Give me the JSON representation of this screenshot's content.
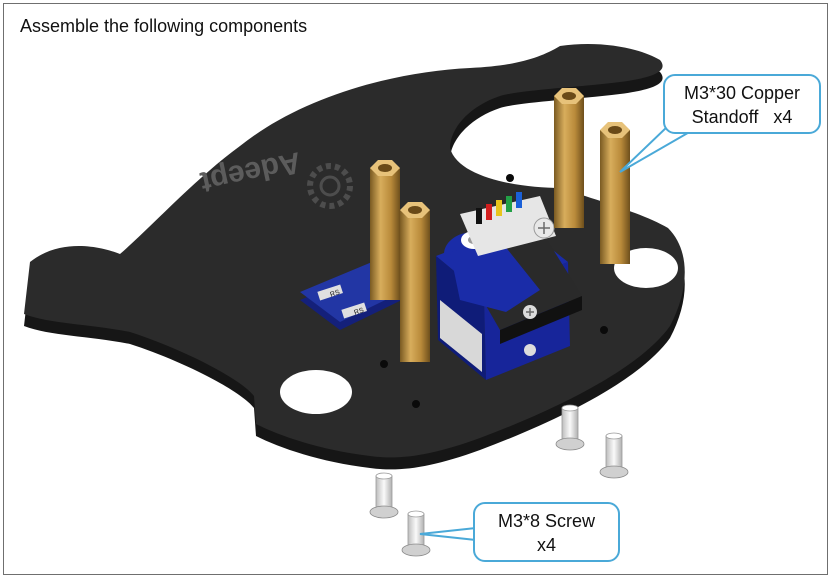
{
  "heading": "Assemble the following components",
  "callouts": {
    "standoff": {
      "line1": "M3*30 Copper",
      "line2": "Standoff",
      "qty": "x4"
    },
    "screw": {
      "line1": "M3*8 Screw",
      "line2": "x4"
    }
  },
  "board": {
    "brand": "Adeept",
    "sensor_label": "RS"
  },
  "colors": {
    "plate": "#2b2b2b",
    "plate_edge": "#161616",
    "brass": "#b98a3a",
    "servo_blue": "#1a2ca8",
    "sensor_board": "#2236a4",
    "callout_border": "#4aa9d8",
    "screw": "#e8e8e8"
  }
}
